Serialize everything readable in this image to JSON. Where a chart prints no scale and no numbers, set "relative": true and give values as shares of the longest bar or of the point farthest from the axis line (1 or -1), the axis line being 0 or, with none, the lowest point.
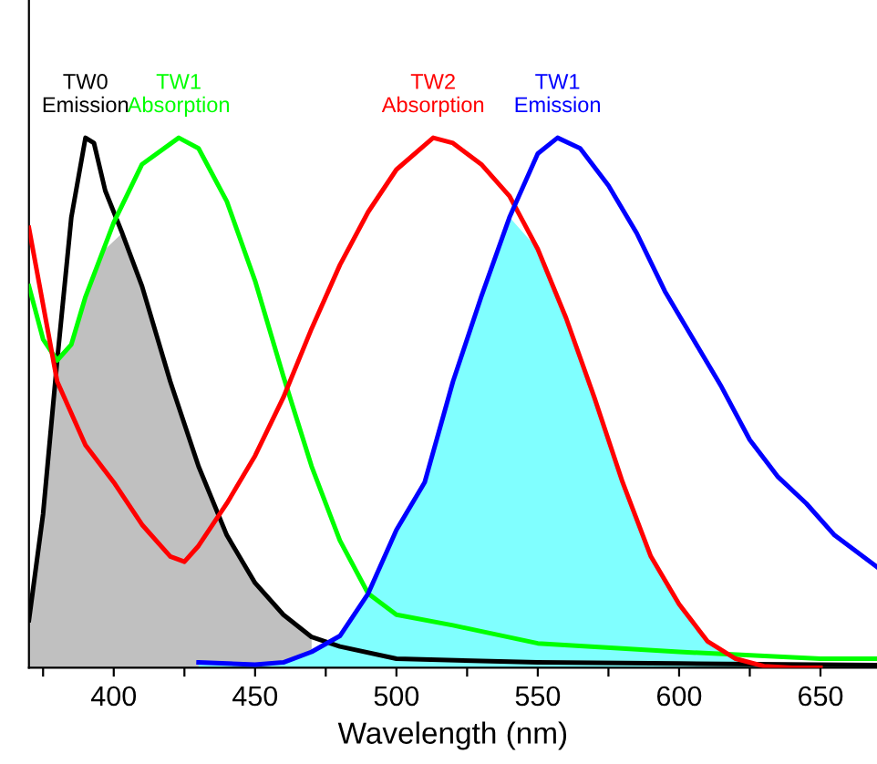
{
  "chart_data": {
    "type": "line",
    "relative": true,
    "xlabel": "Wavelength (nm)",
    "xlim": [
      370,
      670
    ],
    "xticks": [
      {
        "value": 375,
        "label": null
      },
      400,
      {
        "value": 425,
        "label": null
      },
      450,
      {
        "value": 475,
        "label": null
      },
      500,
      {
        "value": 525,
        "label": null
      },
      550,
      {
        "value": 575,
        "label": null
      },
      600,
      {
        "value": 625,
        "label": null
      },
      650
    ],
    "tick_labels": "x",
    "grid": false,
    "legend": false,
    "marker": "none",
    "line_style": "solid",
    "series": [
      {
        "type": "area",
        "color": "#c0c0c0",
        "x": [
          370,
          375,
          380,
          385,
          390,
          397,
          403,
          410,
          420,
          430,
          440,
          450,
          460,
          470
        ],
        "values": [
          0.09,
          0.29,
          0.58,
          0.61,
          0.7,
          0.79,
          0.82,
          0.72,
          0.54,
          0.38,
          0.25,
          0.16,
          0.1,
          0.058
        ]
      },
      {
        "type": "area",
        "color": "#80ffff",
        "x": [
          430,
          450,
          460,
          470,
          480,
          490,
          500,
          510,
          520,
          530,
          540,
          550,
          560,
          570,
          580,
          590,
          600,
          610,
          620,
          630,
          640
        ],
        "values": [
          0.01,
          0.006,
          0.01,
          0.03,
          0.06,
          0.14,
          0.26,
          0.35,
          0.54,
          0.7,
          0.85,
          0.79,
          0.66,
          0.51,
          0.35,
          0.21,
          0.12,
          0.05,
          0.017,
          0.003,
          0
        ]
      },
      {
        "name": "TW0 Emission",
        "color": "#000000",
        "x": [
          370,
          375,
          380,
          385,
          390,
          393,
          397,
          403,
          410,
          420,
          430,
          440,
          450,
          460,
          470,
          480,
          500,
          550,
          600,
          670
        ],
        "values": [
          0.09,
          0.29,
          0.58,
          0.85,
          1.0,
          0.99,
          0.9,
          0.82,
          0.72,
          0.54,
          0.38,
          0.25,
          0.16,
          0.1,
          0.058,
          0.04,
          0.017,
          0.01,
          0.008,
          0.005
        ]
      },
      {
        "name": "TW1 Absorption",
        "color": "#00ff00",
        "x": [
          370,
          375,
          380,
          385,
          390,
          400,
          410,
          423,
          430,
          440,
          450,
          460,
          470,
          480,
          490,
          500,
          520,
          550,
          600,
          650,
          670
        ],
        "values": [
          0.72,
          0.62,
          0.58,
          0.61,
          0.7,
          0.84,
          0.95,
          1.0,
          0.98,
          0.88,
          0.73,
          0.55,
          0.38,
          0.24,
          0.14,
          0.1,
          0.08,
          0.046,
          0.03,
          0.017,
          0.017
        ]
      },
      {
        "name": "TW2 Absorption",
        "color": "#ff0000",
        "x": [
          370,
          380,
          390,
          400,
          410,
          420,
          425,
          430,
          440,
          450,
          460,
          470,
          480,
          490,
          500,
          513,
          520,
          530,
          540,
          550,
          560,
          570,
          580,
          590,
          600,
          610,
          620,
          630,
          640,
          650
        ],
        "values": [
          0.83,
          0.54,
          0.42,
          0.35,
          0.27,
          0.21,
          0.2,
          0.23,
          0.31,
          0.4,
          0.51,
          0.64,
          0.76,
          0.86,
          0.94,
          1.0,
          0.99,
          0.95,
          0.89,
          0.79,
          0.66,
          0.51,
          0.35,
          0.21,
          0.12,
          0.05,
          0.017,
          0.003,
          0,
          0
        ]
      },
      {
        "name": "TW1 Emission",
        "color": "#0000ff",
        "x": [
          430,
          450,
          460,
          470,
          480,
          490,
          500,
          510,
          520,
          530,
          540,
          550,
          557,
          565,
          575,
          585,
          595,
          605,
          615,
          625,
          635,
          645,
          655,
          670
        ],
        "values": [
          0.01,
          0.006,
          0.01,
          0.03,
          0.06,
          0.14,
          0.26,
          0.35,
          0.54,
          0.7,
          0.85,
          0.97,
          1.0,
          0.98,
          0.91,
          0.82,
          0.71,
          0.62,
          0.53,
          0.43,
          0.36,
          0.31,
          0.25,
          0.19
        ]
      }
    ]
  }
}
